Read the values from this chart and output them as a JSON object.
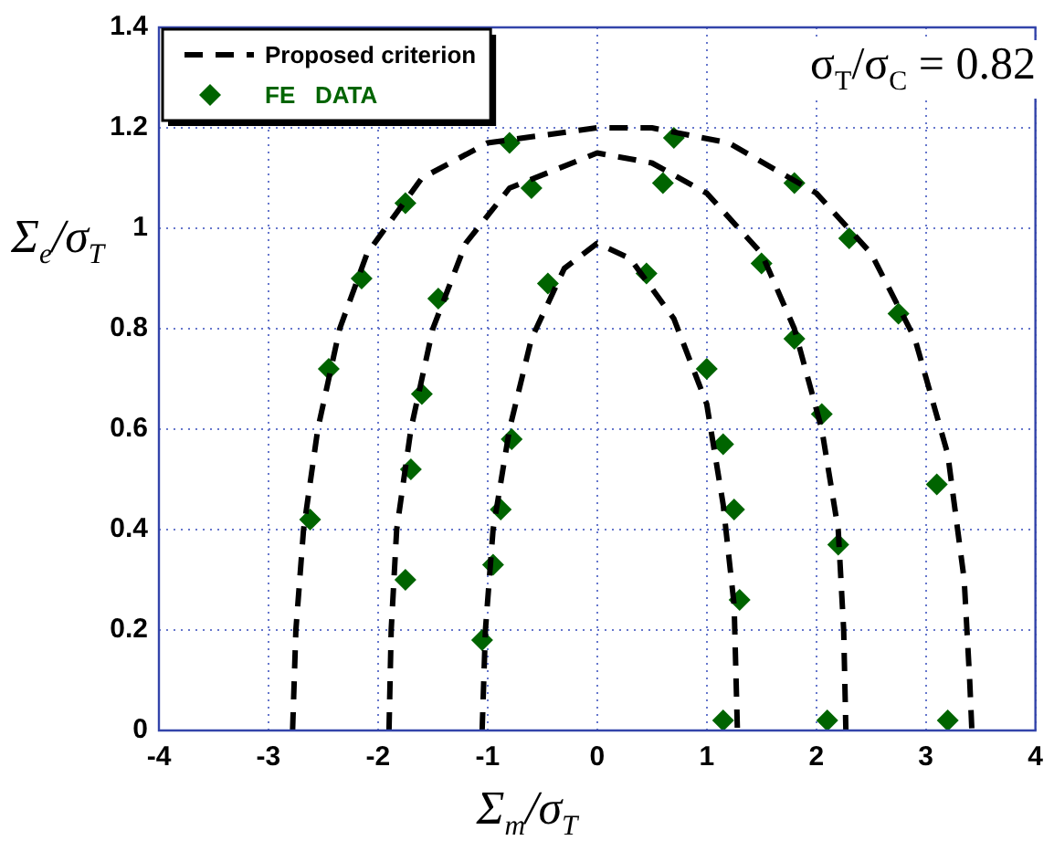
{
  "chart_data": {
    "type": "line",
    "xlabel": "Σ$_{m}$/σ$_{T}$",
    "ylabel": "Σ$_{e}$/σ$_{T}$",
    "annotations": [
      "σ$_{T}$/σ$_{C}$ = 0.82"
    ],
    "xlim": [
      -4,
      4
    ],
    "xticks": [
      -4,
      -3,
      -2,
      -1,
      0,
      1,
      2,
      3,
      4
    ],
    "ylim": [
      0,
      1.4
    ],
    "yticks": [
      0,
      0.2,
      0.4,
      0.6,
      0.8,
      1,
      1.2,
      1.4
    ],
    "grid": true,
    "legend": "top left",
    "series": [
      {
        "name": "Proposed criterion",
        "line_style": "dashed",
        "marker": "none",
        "color": "#000000",
        "x": [
          -2.78,
          -2.75,
          -2.68,
          -2.55,
          -2.35,
          -2.1,
          -1.6,
          -1,
          0,
          0.5,
          1.2,
          2,
          2.5,
          2.9,
          3.2,
          3.35,
          3.4,
          3.42
        ],
        "values": [
          0,
          0.2,
          0.4,
          0.6,
          0.8,
          0.95,
          1.1,
          1.17,
          1.2,
          1.2,
          1.17,
          1.07,
          0.95,
          0.78,
          0.55,
          0.3,
          0.1,
          0
        ]
      },
      {
        "line_style": "dashed",
        "marker": "none",
        "color": "#000000",
        "x": [
          -1.9,
          -1.88,
          -1.83,
          -1.7,
          -1.5,
          -1.2,
          -0.8,
          0,
          0.5,
          1,
          1.5,
          1.8,
          2.05,
          2.2,
          2.25,
          2.27
        ],
        "values": [
          0,
          0.2,
          0.4,
          0.6,
          0.8,
          0.97,
          1.08,
          1.15,
          1.13,
          1.07,
          0.95,
          0.8,
          0.6,
          0.4,
          0.2,
          0
        ]
      },
      {
        "line_style": "dashed",
        "marker": "none",
        "color": "#000000",
        "x": [
          -1.05,
          -1.02,
          -0.95,
          -0.8,
          -0.6,
          -0.3,
          0,
          0.3,
          0.7,
          1,
          1.15,
          1.25,
          1.28
        ],
        "values": [
          0,
          0.2,
          0.4,
          0.6,
          0.78,
          0.92,
          0.97,
          0.94,
          0.82,
          0.65,
          0.45,
          0.25,
          0
        ]
      },
      {
        "name": "FE   DATA",
        "type": "scatter",
        "marker": "diamond",
        "color": "#006400",
        "x": [
          -2.62,
          -2.45,
          -2.15,
          -1.75,
          -0.8,
          0.7,
          1.8,
          2.3,
          2.75,
          3.1,
          3.2,
          -1.75,
          -1.7,
          -1.6,
          -1.45,
          -0.6,
          0.6,
          1.5,
          1.8,
          2.05,
          2.2,
          2.1,
          -1.05,
          -0.95,
          -0.88,
          -0.78,
          -0.45,
          0.45,
          1,
          1.15,
          1.25,
          1.3,
          1.15
        ],
        "values": [
          0.42,
          0.72,
          0.9,
          1.05,
          1.17,
          1.18,
          1.09,
          0.98,
          0.83,
          0.49,
          0.02,
          0.3,
          0.52,
          0.67,
          0.86,
          1.08,
          1.09,
          0.93,
          0.78,
          0.63,
          0.37,
          0.02,
          0.18,
          0.33,
          0.44,
          0.58,
          0.89,
          0.91,
          0.72,
          0.57,
          0.44,
          0.26,
          0.02
        ]
      }
    ]
  }
}
